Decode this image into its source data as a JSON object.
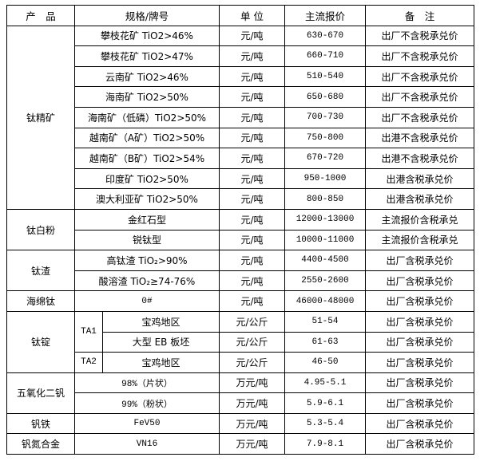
{
  "header": {
    "product": "产　品",
    "spec": "规格/牌号",
    "unit": "单 位",
    "price": "主流报价",
    "note": "备　注"
  },
  "groups": {
    "titanium_concentrate": {
      "name": "钛精矿",
      "rows": [
        {
          "spec": "攀枝花矿 TiO2>46%",
          "unit": "元/吨",
          "price": "630-670",
          "note": "出厂不含税承兑价"
        },
        {
          "spec": "攀枝花矿 TiO2>47%",
          "unit": "元/吨",
          "price": "660-710",
          "note": "出厂不含税承兑价"
        },
        {
          "spec": "云南矿 TiO2>46%",
          "unit": "元/吨",
          "price": "510-540",
          "note": "出厂不含税承兑价"
        },
        {
          "spec": "海南矿 TiO2>50%",
          "unit": "元/吨",
          "price": "650-680",
          "note": "出厂不含税承兑价"
        },
        {
          "spec": "海南矿（低磷）TiO2>50%",
          "unit": "元/吨",
          "price": "700-730",
          "note": "出厂不含税承兑价"
        },
        {
          "spec": "越南矿（A矿）TiO2>50%",
          "unit": "元/吨",
          "price": "750-800",
          "note": "出港不含税承兑价"
        },
        {
          "spec": "越南矿（B矿）TiO2>54%",
          "unit": "元/吨",
          "price": "670-720",
          "note": "出港不含税承兑价"
        },
        {
          "spec": "印度矿 TiO2>50%",
          "unit": "元/吨",
          "price": "950-1000",
          "note": "出港含税承兑价"
        },
        {
          "spec": "澳大利亚矿 TiO2>50%",
          "unit": "元/吨",
          "price": "800-850",
          "note": "出港含税承兑价"
        }
      ]
    },
    "titanium_dioxide": {
      "name": "钛白粉",
      "rows": [
        {
          "spec": "金红石型",
          "unit": "元/吨",
          "price": "12000-13000",
          "note": "主流报价含税承兑"
        },
        {
          "spec": "锐钛型",
          "unit": "元/吨",
          "price": "10000-11000",
          "note": "主流报价含税承兑"
        }
      ]
    },
    "titanium_slag": {
      "name": "钛渣",
      "rows": [
        {
          "spec": "高钛渣 TiO₂>90%",
          "unit": "元/吨",
          "price": "4400-4500",
          "note": "出厂含税承兑价"
        },
        {
          "spec": "酸溶渣 TiO₂≥74-76%",
          "unit": "元/吨",
          "price": "2550-2600",
          "note": "出厂含税承兑价"
        }
      ]
    },
    "sponge_titanium": {
      "name": "海绵钛",
      "rows": [
        {
          "spec": "0#",
          "unit": "元/吨",
          "price": "46000-48000",
          "note": "出厂含税承兑价"
        }
      ]
    },
    "titanium_ingot": {
      "name": "钛锭",
      "grade_ta1": "TA1",
      "grade_ta2": "TA2",
      "rows": [
        {
          "spec": "宝鸡地区",
          "unit": "元/公斤",
          "price": "51-54",
          "note": "出厂含税承兑价"
        },
        {
          "spec": "大型 EB 板坯",
          "unit": "元/公斤",
          "price": "61-63",
          "note": "出厂含税承兑价"
        },
        {
          "spec": "宝鸡地区",
          "unit": "元/公斤",
          "price": "46-50",
          "note": "出厂含税承兑价"
        }
      ]
    },
    "vanadium_pentoxide": {
      "name": "五氧化二钒",
      "rows": [
        {
          "spec": "98%（片状）",
          "unit": "万元/吨",
          "price": "4.95-5.1",
          "note": "出厂含税承兑价"
        },
        {
          "spec": "99%（粉状）",
          "unit": "万元/吨",
          "price": "5.9-6.1",
          "note": "出厂含税承兑价"
        }
      ]
    },
    "ferrovanadium": {
      "name": "钒铁",
      "rows": [
        {
          "spec": "FeV50",
          "unit": "万元/吨",
          "price": "5.3-5.4",
          "note": "出厂含税承兑价"
        }
      ]
    },
    "vanadium_nitrogen": {
      "name": "钒氮合金",
      "rows": [
        {
          "spec": "VN16",
          "unit": "万元/吨",
          "price": "7.9-8.1",
          "note": "出厂含税承兑价"
        }
      ]
    }
  }
}
